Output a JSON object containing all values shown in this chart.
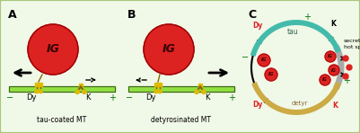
{
  "bg_color": "#f0f8e8",
  "border_color": "#a8c878",
  "mt_color": "#90e040",
  "mt_edge_color": "#406020",
  "motor_color": "#ddbb00",
  "motor_leg_color": "#886600",
  "ig_color": "#dd2222",
  "ig_border_color": "#990000",
  "ig_text_color": "#330000",
  "tau_color": "#44bbaa",
  "detyr_color": "#ccaa44",
  "hotspot_color": "#aaaaaa",
  "minus_color": "#007700",
  "plus_color": "#007700",
  "dy_color": "#dd2222",
  "k_color_a": "#000000",
  "k_color_c": "#dd2222",
  "panel_a_label": "A",
  "panel_b_label": "B",
  "panel_c_label": "C",
  "label_a": "tau-coated MT",
  "label_b": "detyrosinated MT",
  "tau_label": "tau",
  "detyr_label": "detyr",
  "secretion_label": "secretion\nhot spot",
  "dy_label": "Dy",
  "k_label": "K",
  "ig_text": "IG"
}
